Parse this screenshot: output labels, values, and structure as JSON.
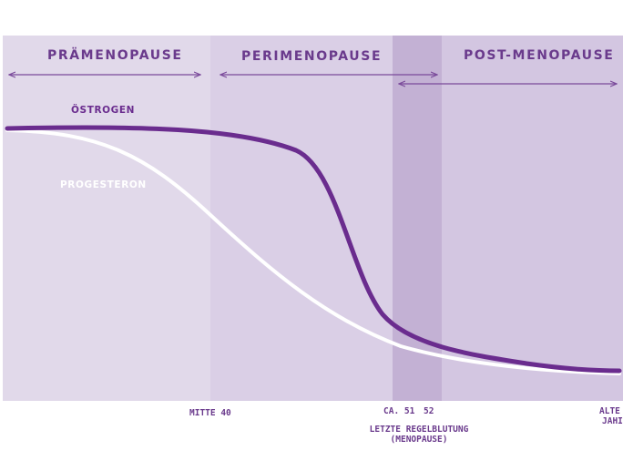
{
  "phases": [
    {
      "label": "PRÄMENOPAUSE",
      "color": "#e1d9ea"
    },
    {
      "label": "PERIMENOPAUSE",
      "color": "#dacfe6"
    },
    {
      "label": "",
      "color": "#c3b1d4"
    },
    {
      "label": "POST-MENOPAUSE",
      "color": "#d3c6e1"
    }
  ],
  "curves": {
    "estrogen": {
      "label": "ÖSTROGEN",
      "color": "#6a2c8e"
    },
    "progesterone": {
      "label": "PROGESTERON",
      "color": "#ffffff"
    }
  },
  "axis": {
    "mid40": "MITTE 40",
    "ca51": "CA. 51",
    "age52": "52",
    "age_end_line1": "ALTE",
    "age_end_line2": "JAHI"
  },
  "menopause_note": {
    "line1": "LETZTE REGELBLUTUNG",
    "line2": "(MENOPAUSE)"
  },
  "colors": {
    "accent": "#6a3a8c",
    "arrow": "#7a4a9a"
  }
}
